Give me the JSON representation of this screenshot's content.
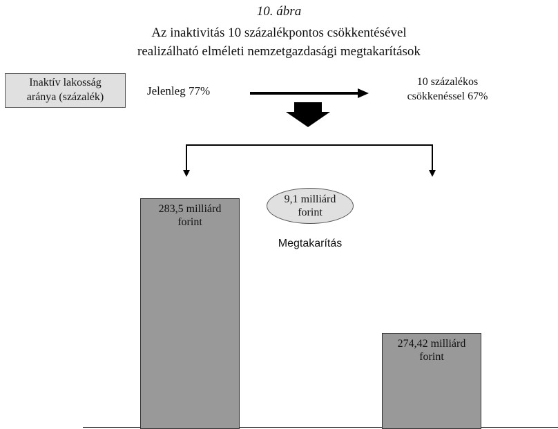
{
  "figure": {
    "number": "10. ábra",
    "title_lines": [
      "Az inaktivitás 10 százalékpontos csökkentésével",
      "realizálható elméleti nemzetgazdasági megtakarítások"
    ]
  },
  "inactive_box": {
    "lines": [
      "Inaktív lakosság",
      "aránya (százalék)"
    ]
  },
  "current_rate_label": "Jelenleg 77%",
  "target_rate_lines": [
    "10 százalékos",
    "csökkenéssel 67%"
  ],
  "savings": {
    "oval_lines": [
      "9,1 milliárd",
      "forint"
    ],
    "label": "Megtakarítás"
  },
  "colors": {
    "bar_fill": "#999999",
    "box_fill": "#e0e0e0",
    "arrow": "#000000"
  },
  "chart_data": {
    "type": "bar",
    "categories": [
      "Jelenleg 77%",
      "10 százalékos csökkenéssel 67%"
    ],
    "values": [
      283.5,
      274.42
    ],
    "unit": "milliárd forint",
    "data_labels": [
      [
        "283,5 milliárd",
        "forint"
      ],
      [
        "274,42 milliárd",
        "forint"
      ]
    ],
    "y_axis_shown": false,
    "ylim": [
      268,
      285
    ]
  }
}
